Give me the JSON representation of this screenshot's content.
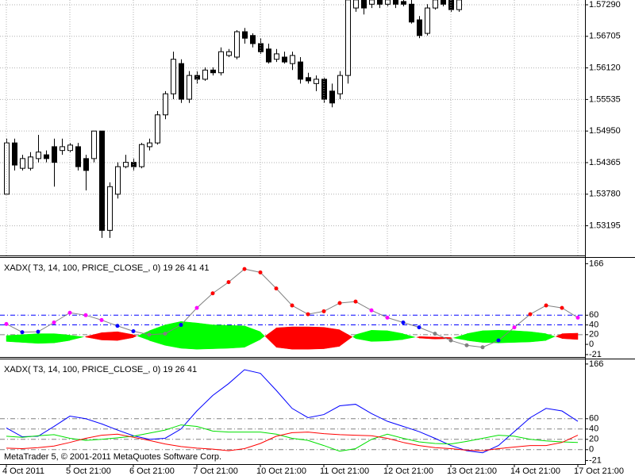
{
  "chart_data": [
    {
      "type": "candlestick",
      "up_color": "#ffffff",
      "down_color": "#000000",
      "edge_color": "#000000",
      "open": [
        1.5378,
        1.5473,
        1.5426,
        1.5426,
        1.5444,
        1.5451,
        1.5466,
        1.5459,
        1.5459,
        1.5466,
        1.5444,
        1.5444,
        1.5495,
        1.5311,
        1.5378,
        1.5429,
        1.5437,
        1.5429,
        1.5466,
        1.5473,
        1.5525,
        1.5564,
        1.562,
        1.5554,
        1.5598,
        1.5591,
        1.5608,
        1.5603,
        1.5635,
        1.5632,
        1.5679,
        1.5672,
        1.5657,
        1.5647,
        1.5628,
        1.5632,
        1.562,
        1.5623,
        1.5594,
        1.5583,
        1.5591,
        1.5569,
        1.5564,
        1.5598,
        1.5723,
        1.5738,
        1.573,
        1.5738,
        1.573,
        1.5738,
        1.5735,
        1.573,
        1.5701,
        1.5676,
        1.5723,
        1.5738,
        1.5738,
        1.572
      ],
      "high": [
        1.5481,
        1.5481,
        1.5451,
        1.5456,
        1.5488,
        1.5459,
        1.5481,
        1.5481,
        1.5473,
        1.5473,
        1.5451,
        1.5495,
        1.5495,
        1.54,
        1.5437,
        1.5451,
        1.5444,
        1.5473,
        1.5481,
        1.5532,
        1.5569,
        1.5642,
        1.5628,
        1.5606,
        1.5606,
        1.5613,
        1.5613,
        1.565,
        1.5647,
        1.5682,
        1.5686,
        1.5676,
        1.5667,
        1.5657,
        1.5647,
        1.5642,
        1.5642,
        1.5632,
        1.5603,
        1.5598,
        1.5594,
        1.5583,
        1.5606,
        1.5753,
        1.5753,
        1.5753,
        1.5745,
        1.5745,
        1.5745,
        1.5745,
        1.5745,
        1.5738,
        1.5708,
        1.573,
        1.5745,
        1.5745,
        1.5745,
        1.5745
      ],
      "low": [
        1.5378,
        1.5422,
        1.5422,
        1.5422,
        1.5437,
        1.5437,
        1.5392,
        1.5451,
        1.5456,
        1.5422,
        1.5385,
        1.5437,
        1.5297,
        1.5297,
        1.537,
        1.5426,
        1.5422,
        1.5426,
        1.5459,
        1.547,
        1.5517,
        1.5554,
        1.5547,
        1.5547,
        1.5583,
        1.5588,
        1.5598,
        1.5598,
        1.5632,
        1.5628,
        1.5657,
        1.565,
        1.5638,
        1.562,
        1.5623,
        1.562,
        1.5608,
        1.5583,
        1.5583,
        1.5569,
        1.5547,
        1.5539,
        1.5554,
        1.5583,
        1.5716,
        1.5711,
        1.5723,
        1.5723,
        1.5726,
        1.5723,
        1.5726,
        1.5694,
        1.5667,
        1.5672,
        1.572,
        1.5726,
        1.5716,
        1.5716
      ],
      "close": [
        1.5473,
        1.5432,
        1.5444,
        1.5447,
        1.5456,
        1.5444,
        1.5437,
        1.5466,
        1.5469,
        1.5429,
        1.5422,
        1.5495,
        1.5311,
        1.5392,
        1.5429,
        1.5437,
        1.5429,
        1.547,
        1.5473,
        1.5525,
        1.5564,
        1.5628,
        1.5554,
        1.5598,
        1.5591,
        1.5608,
        1.5603,
        1.5642,
        1.5642,
        1.5679,
        1.5667,
        1.5657,
        1.5642,
        1.5623,
        1.5638,
        1.5623,
        1.5635,
        1.5591,
        1.5588,
        1.5591,
        1.5554,
        1.5547,
        1.5598,
        1.5738,
        1.5738,
        1.5723,
        1.5738,
        1.573,
        1.5738,
        1.573,
        1.573,
        1.5697,
        1.5672,
        1.5723,
        1.5738,
        1.573,
        1.572,
        1.5738
      ],
      "ylim": [
        1.52645,
        1.57378
      ],
      "yticks": [
        {
          "value": 1.5729,
          "label": "1.57290"
        },
        {
          "value": 1.56705,
          "label": "1.56705"
        },
        {
          "value": 1.5612,
          "label": "1.56120"
        },
        {
          "value": 1.55535,
          "label": "1.55535"
        },
        {
          "value": 1.5495,
          "label": "1.54950"
        },
        {
          "value": 1.54365,
          "label": "1.54365"
        },
        {
          "value": 1.5378,
          "label": "1.53780"
        },
        {
          "value": 1.53195,
          "label": "1.53195"
        }
      ],
      "grid": true,
      "grid_color": "#b0b0b0"
    },
    {
      "type": "line",
      "title": "XADX( T3, 14, 100, PRICE_CLOSE_, 0) 19 26 41 41",
      "series": [
        {
          "color": "#808080",
          "markers": true,
          "values": [
            42,
            25,
            26,
            45,
            65,
            60,
            50,
            38,
            27,
            20,
            22,
            40,
            75,
            105,
            128,
            155,
            148,
            115,
            80,
            62,
            68,
            85,
            88,
            70,
            55,
            45,
            35,
            22,
            8,
            -2,
            -6,
            8,
            35,
            62,
            80,
            75,
            55
          ],
          "point_colors": [
            "#ff00ff",
            "#0000ff",
            "#0000ff",
            "#ff00ff",
            "#ff00ff",
            "#ff00ff",
            "#ff00ff",
            "#0000ff",
            "#0000ff",
            "#808080",
            "#808080",
            "#0000ff",
            "#ff00ff",
            "#ff0000",
            "#ff0000",
            "#ff0000",
            "#ff0000",
            "#ff0000",
            "#ff0000",
            "#ff0000",
            "#ff0000",
            "#ff0000",
            "#ff0000",
            "#ff00ff",
            "#ff00ff",
            "#0000ff",
            "#0000ff",
            "#808080",
            "#808080",
            "#808080",
            "#808080",
            "#0000ff",
            "#ff00ff",
            "#ff0000",
            "#ff0000",
            "#ff0000",
            "#ff00ff"
          ]
        }
      ],
      "band": {
        "colors": [
          "#00ff00",
          "#ff0000"
        ],
        "a": [
          18,
          20,
          22,
          22,
          19,
          15,
          9,
          8,
          14,
          28,
          40,
          47,
          44,
          40,
          39,
          38,
          26,
          -6,
          -10,
          -10,
          -9,
          -4,
          20,
          29,
          28,
          22,
          13,
          11,
          12,
          22,
          28,
          29,
          28,
          26,
          22,
          12,
          10
        ],
        "b": [
          6,
          4,
          2,
          3,
          8,
          16,
          24,
          26,
          20,
          8,
          -2,
          -8,
          -10,
          -9,
          -8,
          -6,
          10,
          34,
          36,
          36,
          35,
          30,
          12,
          6,
          7,
          10,
          16,
          15,
          14,
          8,
          4,
          3,
          4,
          5,
          8,
          22,
          23
        ]
      },
      "ylim": [
        -26,
        178
      ],
      "yticks": [
        166,
        60,
        40,
        20,
        0,
        -21
      ],
      "grid": false,
      "levels": [
        {
          "value": 60,
          "color": "#0000ff"
        },
        {
          "value": 40,
          "color": "#0000ff"
        },
        {
          "value": 20,
          "color": "#808080"
        }
      ]
    },
    {
      "type": "line",
      "title": "XADX( T3, 14, 100, PRICE_CLOSE_, 0) 19 26 41",
      "annotation": "MetaTrader 5, © 2001-2011 MetaQuotes Software Corp.",
      "categories": [
        "4 Oct 2011",
        null,
        null,
        null,
        "5 Oct 21:00",
        null,
        null,
        null,
        "6 Oct 21:00",
        null,
        null,
        null,
        "7 Oct 21:00",
        null,
        null,
        null,
        "10 Oct 21:00",
        null,
        null,
        null,
        "11 Oct 21:00",
        null,
        null,
        null,
        "12 Oct 21:00",
        null,
        null,
        null,
        "13 Oct 21:00",
        null,
        null,
        null,
        "14 Oct 21:00",
        null,
        null,
        null,
        "17 Oct 21:00"
      ],
      "series": [
        {
          "color": "#0000ff",
          "values": [
            42,
            25,
            26,
            45,
            65,
            60,
            50,
            38,
            27,
            20,
            22,
            40,
            75,
            105,
            128,
            155,
            148,
            115,
            80,
            62,
            68,
            85,
            88,
            70,
            55,
            45,
            35,
            22,
            8,
            -2,
            -6,
            8,
            35,
            62,
            80,
            75,
            55
          ]
        },
        {
          "color": "#00e000",
          "values": [
            26,
            24,
            27,
            29,
            22,
            18,
            20,
            23,
            26,
            32,
            38,
            48,
            45,
            36,
            34,
            34,
            34,
            30,
            22,
            18,
            8,
            -3,
            2,
            20,
            30,
            22,
            15,
            12,
            11,
            16,
            22,
            28,
            26,
            20,
            17,
            15,
            14
          ]
        },
        {
          "color": "#ff0000",
          "values": [
            3,
            2,
            4,
            7,
            14,
            22,
            28,
            30,
            24,
            18,
            11,
            6,
            3,
            1,
            -2,
            2,
            12,
            26,
            33,
            34,
            31,
            29,
            28,
            27,
            22,
            14,
            8,
            4,
            2,
            -1,
            -2,
            2,
            5,
            8,
            8,
            14,
            28
          ]
        }
      ],
      "ylim": [
        -28,
        175
      ],
      "yticks": [
        166,
        60,
        40,
        20,
        0,
        -21
      ],
      "grid": false,
      "xgrid": true,
      "xgrid_color": "#b0b0b0",
      "levels": [
        {
          "value": 60,
          "color": "#808080"
        },
        {
          "value": 40,
          "color": "#808080"
        },
        {
          "value": 20,
          "color": "#808080"
        },
        {
          "value": 0,
          "color": "#808080"
        }
      ]
    }
  ]
}
